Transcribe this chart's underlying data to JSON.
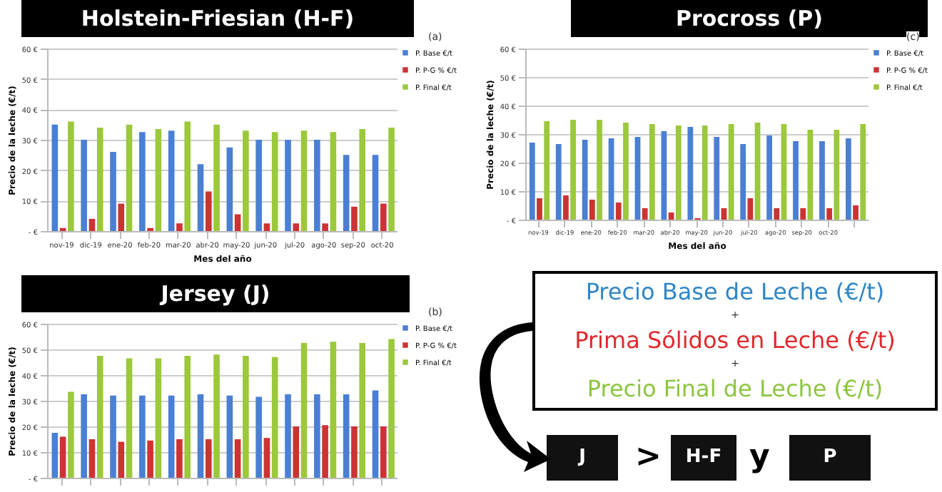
{
  "chart_data": [
    {
      "type": "bar",
      "title": "Holstein-Friesian (H-F)",
      "xlabel": "Mes del año",
      "ylabel": "Precio de la leche (€/t)",
      "annotations": [
        "(a)"
      ],
      "categories": [
        "nov-19",
        "dic-19",
        "ene-20",
        "feb-20",
        "mar-20",
        "abr-20",
        "may-20",
        "jun-20",
        "jul-20",
        "ago-20",
        "sep-20",
        "oct-20"
      ],
      "series": [
        {
          "name": "P. Base €/t",
          "color": "#4a7fd4",
          "values": [
            35,
            30,
            26,
            32.5,
            33,
            22,
            27.5,
            30,
            30,
            30,
            25,
            25
          ]
        },
        {
          "name": "P. P-G % €/t",
          "color": "#cc3333",
          "values": [
            1,
            4,
            9,
            1,
            2.5,
            13,
            5.5,
            2.5,
            2.5,
            2.5,
            8,
            9
          ]
        },
        {
          "name": "P. Final €/t",
          "color": "#9cc83c",
          "values": [
            36,
            34,
            35,
            33.5,
            36,
            35,
            33,
            32.5,
            33,
            32.5,
            33.5,
            34
          ]
        }
      ],
      "ylim": [
        0,
        60
      ],
      "yticks": [
        {
          "value": 0,
          "label": "- €"
        },
        {
          "value": 10,
          "label": "10 €"
        },
        {
          "value": 20,
          "label": "20 €"
        },
        {
          "value": 30,
          "label": "30 €"
        },
        {
          "value": 40,
          "label": "40 €"
        },
        {
          "value": 50,
          "label": "50 €"
        },
        {
          "value": 60,
          "label": "60 €"
        }
      ],
      "grid": "y",
      "legend": "right"
    },
    {
      "type": "bar",
      "title": "Procross (P)",
      "xlabel": "Mes del año",
      "ylabel": "Precio de la leche (€/t)",
      "annotations": [
        "(c)"
      ],
      "categories": [
        "nov-19",
        "dic-19",
        "ene-20",
        "feb-20",
        "mar-20",
        "abr-20",
        "may-20",
        "jun-20",
        "jul-20",
        "ago-20",
        "sep-20",
        "oct-20",
        null
      ],
      "series": [
        {
          "name": "P. Base €/t",
          "color": "#4a7fd4",
          "values": [
            27,
            26.5,
            28,
            28.5,
            29,
            31,
            32.5,
            29,
            26.5,
            29.5,
            27.5,
            27.5,
            28.5
          ]
        },
        {
          "name": "P. P-G % €/t",
          "color": "#cc3333",
          "values": [
            7.5,
            8.5,
            7,
            6,
            4,
            2.5,
            0.5,
            4,
            7.5,
            4,
            4,
            4,
            5
          ]
        },
        {
          "name": "P. Final €/t",
          "color": "#9cc83c",
          "values": [
            34.5,
            35,
            35,
            34,
            33.5,
            33,
            33,
            33.5,
            34,
            33.5,
            31.5,
            31.5,
            33.5
          ]
        }
      ],
      "ylim": [
        0,
        60
      ],
      "yticks": [
        {
          "value": 0,
          "label": "- €"
        },
        {
          "value": 10,
          "label": "10 €"
        },
        {
          "value": 20,
          "label": "20 €"
        },
        {
          "value": 30,
          "label": "30 €"
        },
        {
          "value": 40,
          "label": "40 €"
        },
        {
          "value": 50,
          "label": "50 €"
        },
        {
          "value": 60,
          "label": "60 €"
        }
      ],
      "grid": "y",
      "legend": "right"
    },
    {
      "type": "bar",
      "title": "Jersey (J)",
      "ylabel": "Precio de la leche (€/t)",
      "annotations": [
        "(b)"
      ],
      "categories": [
        null,
        null,
        null,
        null,
        null,
        null,
        null,
        null,
        null,
        null,
        null,
        null
      ],
      "series": [
        {
          "name": "P. Base €/t",
          "color": "#4a7fd4",
          "values": [
            17.5,
            32.5,
            32,
            32,
            32,
            32.5,
            32,
            31.5,
            32.5,
            32.5,
            32.5,
            34
          ]
        },
        {
          "name": "P. P-G % €/t",
          "color": "#cc3333",
          "values": [
            16,
            15,
            14,
            14.5,
            15,
            15,
            15,
            15.5,
            20,
            20.5,
            20,
            20
          ]
        },
        {
          "name": "P. Final €/t",
          "color": "#9cc83c",
          "values": [
            33.5,
            47.5,
            46.5,
            46.5,
            47.5,
            48,
            47.5,
            47,
            52.5,
            53,
            52.5,
            54
          ]
        }
      ],
      "ylim": [
        0,
        60
      ],
      "yticks": [
        {
          "value": 0,
          "label": "- €"
        },
        {
          "value": 10,
          "label": "10 €"
        },
        {
          "value": 20,
          "label": "20 €"
        },
        {
          "value": 30,
          "label": "30 €"
        },
        {
          "value": 40,
          "label": "40 €"
        },
        {
          "value": 50,
          "label": "50 €"
        },
        {
          "value": 60,
          "label": "60 €"
        }
      ],
      "grid": "y",
      "legend": "right",
      "tick_labels": "y"
    },
    {
      "type": "other",
      "annotations": [
        "Precio Base de Leche (€/t)",
        "+",
        "Prima Sólidos en Leche (€/t)",
        "+",
        "Precio Final de Leche (€/t)",
        "J",
        ">",
        "H-F",
        "y",
        "P"
      ]
    }
  ]
}
